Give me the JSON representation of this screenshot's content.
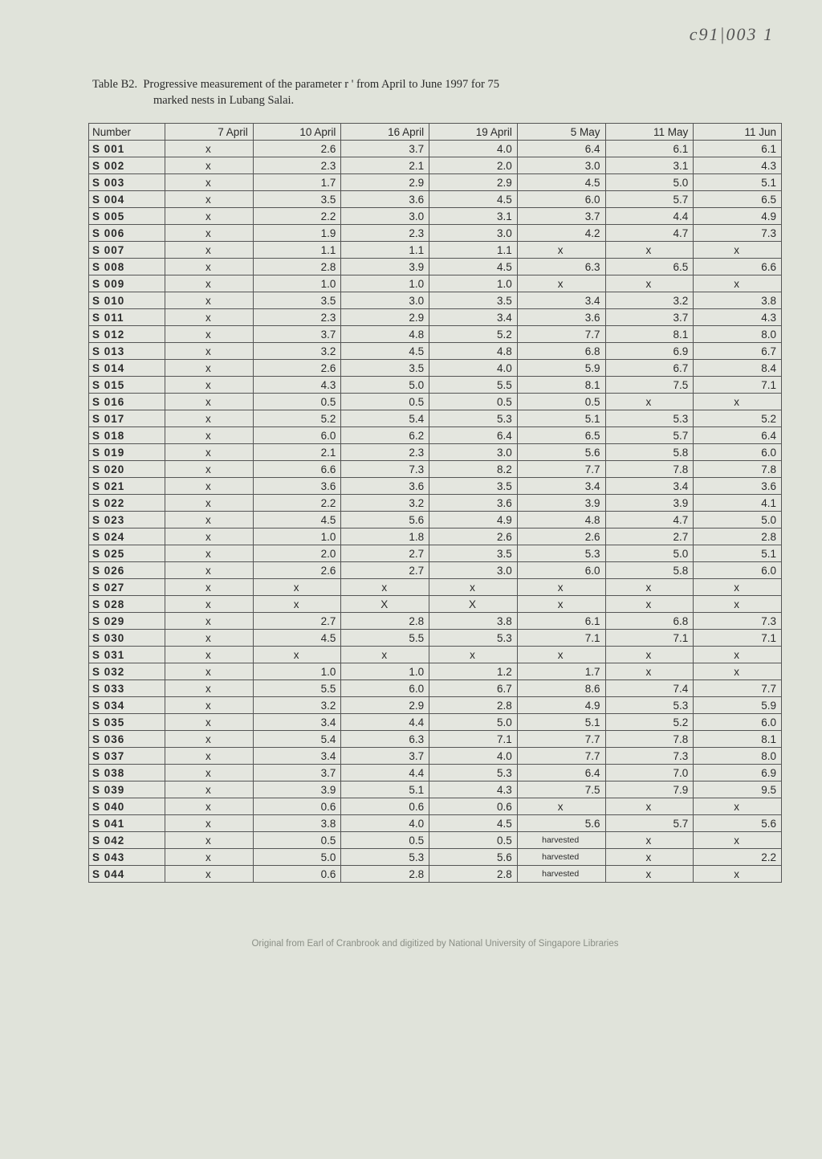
{
  "handwritten": "c91|003    1",
  "caption": {
    "label": "Table B2.",
    "line1": "Progressive measurement of the parameter r ' from April to June 1997 for 75",
    "line2": "marked nests in Lubang Salai."
  },
  "columns": [
    "Number",
    "7 April",
    "10 April",
    "16 April",
    "19 April",
    "5 May",
    "11 May",
    "11 Jun"
  ],
  "rows": [
    [
      "S  001",
      "x",
      "2.6",
      "3.7",
      "4.0",
      "6.4",
      "6.1",
      "6.1"
    ],
    [
      "S  002",
      "x",
      "2.3",
      "2.1",
      "2.0",
      "3.0",
      "3.1",
      "4.3"
    ],
    [
      "S  003",
      "x",
      "1.7",
      "2.9",
      "2.9",
      "4.5",
      "5.0",
      "5.1"
    ],
    [
      "S  004",
      "x",
      "3.5",
      "3.6",
      "4.5",
      "6.0",
      "5.7",
      "6.5"
    ],
    [
      "S  005",
      "x",
      "2.2",
      "3.0",
      "3.1",
      "3.7",
      "4.4",
      "4.9"
    ],
    [
      "S  006",
      "x",
      "1.9",
      "2.3",
      "3.0",
      "4.2",
      "4.7",
      "7.3"
    ],
    [
      "S  007",
      "x",
      "1.1",
      "1.1",
      "1.1",
      "x",
      "x",
      "x"
    ],
    [
      "S  008",
      "x",
      "2.8",
      "3.9",
      "4.5",
      "6.3",
      "6.5",
      "6.6"
    ],
    [
      "S  009",
      "x",
      "1.0",
      "1.0",
      "1.0",
      "x",
      "x",
      "x"
    ],
    [
      "S  010",
      "x",
      "3.5",
      "3.0",
      "3.5",
      "3.4",
      "3.2",
      "3.8"
    ],
    [
      "S  011",
      "x",
      "2.3",
      "2.9",
      "3.4",
      "3.6",
      "3.7",
      "4.3"
    ],
    [
      "S  012",
      "x",
      "3.7",
      "4.8",
      "5.2",
      "7.7",
      "8.1",
      "8.0"
    ],
    [
      "S  013",
      "x",
      "3.2",
      "4.5",
      "4.8",
      "6.8",
      "6.9",
      "6.7"
    ],
    [
      "S  014",
      "x",
      "2.6",
      "3.5",
      "4.0",
      "5.9",
      "6.7",
      "8.4"
    ],
    [
      "S  015",
      "x",
      "4.3",
      "5.0",
      "5.5",
      "8.1",
      "7.5",
      "7.1"
    ],
    [
      "S  016",
      "x",
      "0.5",
      "0.5",
      "0.5",
      "0.5",
      "x",
      "x"
    ],
    [
      "S  017",
      "x",
      "5.2",
      "5.4",
      "5.3",
      "5.1",
      "5.3",
      "5.2"
    ],
    [
      "S  018",
      "x",
      "6.0",
      "6.2",
      "6.4",
      "6.5",
      "5.7",
      "6.4"
    ],
    [
      "S  019",
      "x",
      "2.1",
      "2.3",
      "3.0",
      "5.6",
      "5.8",
      "6.0"
    ],
    [
      "S  020",
      "x",
      "6.6",
      "7.3",
      "8.2",
      "7.7",
      "7.8",
      "7.8"
    ],
    [
      "S  021",
      "x",
      "3.6",
      "3.6",
      "3.5",
      "3.4",
      "3.4",
      "3.6"
    ],
    [
      "S  022",
      "x",
      "2.2",
      "3.2",
      "3.6",
      "3.9",
      "3.9",
      "4.1"
    ],
    [
      "S  023",
      "x",
      "4.5",
      "5.6",
      "4.9",
      "4.8",
      "4.7",
      "5.0"
    ],
    [
      "S  024",
      "x",
      "1.0",
      "1.8",
      "2.6",
      "2.6",
      "2.7",
      "2.8"
    ],
    [
      "S  025",
      "x",
      "2.0",
      "2.7",
      "3.5",
      "5.3",
      "5.0",
      "5.1"
    ],
    [
      "S  026",
      "x",
      "2.6",
      "2.7",
      "3.0",
      "6.0",
      "5.8",
      "6.0"
    ],
    [
      "S  027",
      "x",
      "x",
      "x",
      "x",
      "x",
      "x",
      "x"
    ],
    [
      "S  028",
      "x",
      "x",
      "X",
      "X",
      "x",
      "x",
      "x"
    ],
    [
      "S  029",
      "x",
      "2.7",
      "2.8",
      "3.8",
      "6.1",
      "6.8",
      "7.3"
    ],
    [
      "S  030",
      "x",
      "4.5",
      "5.5",
      "5.3",
      "7.1",
      "7.1",
      "7.1"
    ],
    [
      "S  031",
      "x",
      "x",
      "x",
      "x",
      "x",
      "x",
      "x"
    ],
    [
      "S  032",
      "x",
      "1.0",
      "1.0",
      "1.2",
      "1.7",
      "x",
      "x"
    ],
    [
      "S  033",
      "x",
      "5.5",
      "6.0",
      "6.7",
      "8.6",
      "7.4",
      "7.7"
    ],
    [
      "S  034",
      "x",
      "3.2",
      "2.9",
      "2.8",
      "4.9",
      "5.3",
      "5.9"
    ],
    [
      "S  035",
      "x",
      "3.4",
      "4.4",
      "5.0",
      "5.1",
      "5.2",
      "6.0"
    ],
    [
      "S  036",
      "x",
      "5.4",
      "6.3",
      "7.1",
      "7.7",
      "7.8",
      "8.1"
    ],
    [
      "S  037",
      "x",
      "3.4",
      "3.7",
      "4.0",
      "7.7",
      "7.3",
      "8.0"
    ],
    [
      "S  038",
      "x",
      "3.7",
      "4.4",
      "5.3",
      "6.4",
      "7.0",
      "6.9"
    ],
    [
      "S  039",
      "x",
      "3.9",
      "5.1",
      "4.3",
      "7.5",
      "7.9",
      "9.5"
    ],
    [
      "S  040",
      "x",
      "0.6",
      "0.6",
      "0.6",
      "x",
      "x",
      "x"
    ],
    [
      "S  041",
      "x",
      "3.8",
      "4.0",
      "4.5",
      "5.6",
      "5.7",
      "5.6"
    ],
    [
      "S  042",
      "x",
      "0.5",
      "0.5",
      "0.5",
      "harvested",
      "x",
      "x"
    ],
    [
      "S  043",
      "x",
      "5.0",
      "5.3",
      "5.6",
      "harvested",
      "x",
      "2.2"
    ],
    [
      "S  044",
      "x",
      "0.6",
      "2.8",
      "2.8",
      "harvested",
      "x",
      "x"
    ]
  ],
  "footer": "Original from Earl of Cranbrook and digitized by National University of Singapore Libraries",
  "styling": {
    "page_bg": "#e0e3da",
    "border_color": "#555555",
    "text_color": "#2a2a2a",
    "font_size_body": 13.5,
    "font_size_caption": 14.5,
    "font_size_footer": 11.5
  }
}
